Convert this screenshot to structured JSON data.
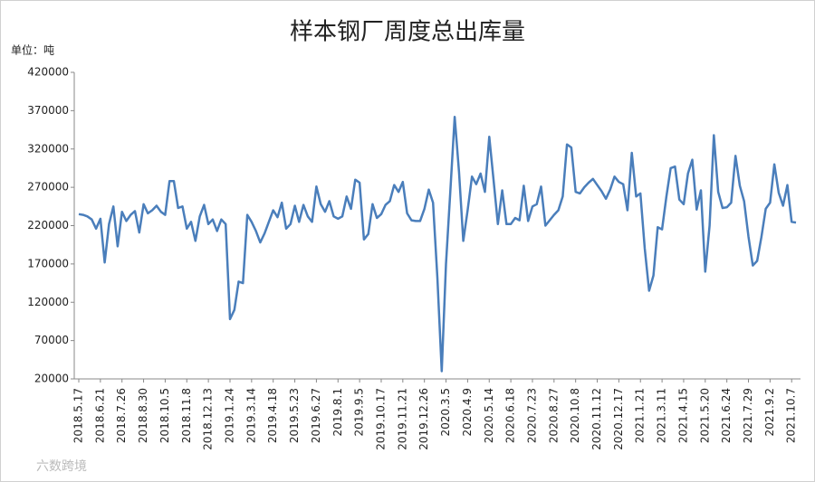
{
  "chart_data": {
    "type": "line",
    "title": "样本钢厂周度总出库量",
    "unit_label": "单位：吨",
    "watermark": "六数跨境",
    "categories": [
      "2018.5.17",
      null,
      null,
      null,
      null,
      "2018.6.21",
      null,
      null,
      null,
      null,
      "2018.7.26",
      null,
      null,
      null,
      null,
      "2018.8.30",
      null,
      null,
      null,
      null,
      "2018.10.5",
      null,
      null,
      null,
      null,
      "2018.11.8",
      null,
      null,
      null,
      null,
      "2018.12.13",
      null,
      null,
      null,
      null,
      "2019.1.24",
      null,
      null,
      null,
      null,
      "2019.3.14",
      null,
      null,
      null,
      null,
      "2019.4.18",
      null,
      null,
      null,
      null,
      "2019.5.23",
      null,
      null,
      null,
      null,
      "2019.6.27",
      null,
      null,
      null,
      null,
      "2019.8.1",
      null,
      null,
      null,
      null,
      "2019.9.5",
      null,
      null,
      null,
      null,
      "2019.10.17",
      null,
      null,
      null,
      null,
      "2019.11.21",
      null,
      null,
      null,
      null,
      "2019.12.26",
      null,
      null,
      null,
      null,
      "2020.3.5",
      null,
      null,
      null,
      null,
      "2020.4.9",
      null,
      null,
      null,
      null,
      "2020.5.14",
      null,
      null,
      null,
      null,
      "2020.6.18",
      null,
      null,
      null,
      null,
      "2020.7.23",
      null,
      null,
      null,
      null,
      "2020.8.27",
      null,
      null,
      null,
      null,
      "2020.10.8",
      null,
      null,
      null,
      null,
      "2020.11.12",
      null,
      null,
      null,
      null,
      "2020.12.17",
      null,
      null,
      null,
      null,
      "2021.1.21",
      null,
      null,
      null,
      null,
      "2021.3.11",
      null,
      null,
      null,
      null,
      "2021.4.15",
      null,
      null,
      null,
      null,
      "2021.5.20",
      null,
      null,
      null,
      null,
      "2021.6.24",
      null,
      null,
      null,
      null,
      "2021.7.29",
      null,
      null,
      null,
      null,
      "2021.9.2",
      null,
      null,
      null,
      null,
      "2021.10.7",
      null
    ],
    "series": [
      {
        "name": "总出库量",
        "color": "#4a7ebb",
        "values": [
          235000,
          234000,
          232000,
          228000,
          216000,
          229000,
          172000,
          222000,
          245000,
          193000,
          238000,
          226000,
          234000,
          239000,
          211000,
          248000,
          236000,
          240000,
          246000,
          238000,
          234000,
          278000,
          278000,
          243000,
          245000,
          216000,
          225000,
          200000,
          232000,
          247000,
          222000,
          228000,
          213000,
          228000,
          222000,
          98000,
          110000,
          147000,
          145000,
          234000,
          225000,
          213000,
          198000,
          210000,
          225000,
          240000,
          231000,
          250000,
          216000,
          222000,
          246000,
          225000,
          247000,
          232000,
          225000,
          271000,
          248000,
          238000,
          252000,
          232000,
          229000,
          232000,
          258000,
          242000,
          280000,
          276000,
          202000,
          209000,
          248000,
          230000,
          235000,
          247000,
          252000,
          273000,
          264000,
          277000,
          236000,
          227000,
          226000,
          226000,
          242000,
          267000,
          250000,
          152000,
          30000,
          170000,
          265000,
          362000,
          290000,
          200000,
          240000,
          284000,
          274000,
          288000,
          264000,
          336000,
          280000,
          222000,
          266000,
          222000,
          222000,
          230000,
          227000,
          272000,
          226000,
          245000,
          248000,
          271000,
          220000,
          227000,
          234000,
          240000,
          258000,
          326000,
          322000,
          264000,
          262000,
          270000,
          276000,
          281000,
          273000,
          265000,
          255000,
          267000,
          284000,
          277000,
          274000,
          240000,
          315000,
          258000,
          262000,
          190000,
          135000,
          155000,
          218000,
          215000,
          258000,
          295000,
          297000,
          254000,
          248000,
          288000,
          306000,
          241000,
          266000,
          160000,
          220000,
          338000,
          264000,
          243000,
          244000,
          250000,
          311000,
          272000,
          252000,
          206000,
          168000,
          174000,
          205000,
          242000,
          250000,
          300000,
          263000,
          246000,
          273000,
          225000,
          224000
        ]
      }
    ],
    "ylim": [
      20000,
      420000
    ],
    "yticks": [
      20000,
      70000,
      120000,
      170000,
      220000,
      270000,
      320000,
      370000,
      420000
    ],
    "grid": false
  }
}
